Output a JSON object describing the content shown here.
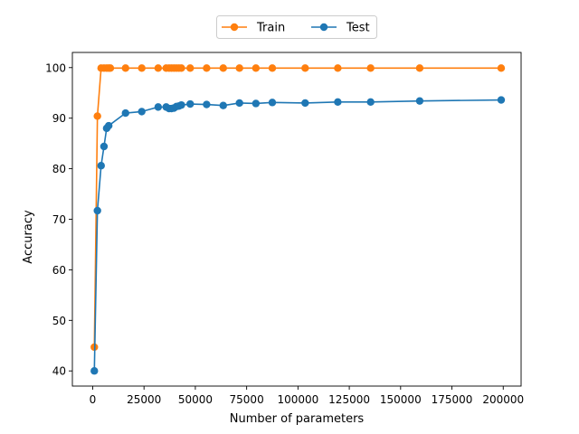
{
  "chart_data": {
    "type": "line",
    "xlabel": "Number of parameters",
    "ylabel": "Accuracy",
    "xlim": [
      -9900,
      208700
    ],
    "ylim": [
      37.0,
      103.0
    ],
    "xticks": [
      0,
      25000,
      50000,
      75000,
      100000,
      125000,
      150000,
      175000,
      200000
    ],
    "xtick_labels": [
      "0",
      "25000",
      "50000",
      "75000",
      "100000",
      "125000",
      "150000",
      "175000",
      "200000"
    ],
    "yticks": [
      40,
      50,
      60,
      70,
      80,
      90,
      100
    ],
    "ytick_labels": [
      "40",
      "50",
      "60",
      "70",
      "80",
      "90",
      "100"
    ],
    "grid": false,
    "legend_position": "top-center",
    "series": [
      {
        "name": "Train",
        "color": "#ff7f0e",
        "marker": "circle",
        "points": [
          [
            800,
            44.7
          ],
          [
            2300,
            90.4
          ],
          [
            4100,
            99.9
          ],
          [
            5500,
            99.9
          ],
          [
            6800,
            99.9
          ],
          [
            7800,
            99.9
          ],
          [
            8600,
            99.9
          ],
          [
            16000,
            99.9
          ],
          [
            23900,
            99.9
          ],
          [
            31900,
            99.9
          ],
          [
            35800,
            99.9
          ],
          [
            37200,
            99.9
          ],
          [
            38400,
            99.9
          ],
          [
            39600,
            99.9
          ],
          [
            40800,
            99.9
          ],
          [
            42000,
            99.9
          ],
          [
            43200,
            99.9
          ],
          [
            47500,
            99.9
          ],
          [
            55500,
            99.9
          ],
          [
            63600,
            99.9
          ],
          [
            71500,
            99.9
          ],
          [
            79500,
            99.9
          ],
          [
            87500,
            99.9
          ],
          [
            103500,
            99.9
          ],
          [
            119400,
            99.9
          ],
          [
            135400,
            99.9
          ],
          [
            159300,
            99.9
          ],
          [
            199000,
            99.9
          ]
        ]
      },
      {
        "name": "Test",
        "color": "#1f77b4",
        "marker": "circle",
        "points": [
          [
            800,
            40.0
          ],
          [
            2300,
            71.7
          ],
          [
            4100,
            80.6
          ],
          [
            5500,
            84.4
          ],
          [
            6800,
            88.0
          ],
          [
            7800,
            88.5
          ],
          [
            16000,
            91.0
          ],
          [
            23900,
            91.3
          ],
          [
            31900,
            92.2
          ],
          [
            35800,
            92.2
          ],
          [
            37200,
            91.9
          ],
          [
            38400,
            91.9
          ],
          [
            39600,
            92.0
          ],
          [
            40800,
            92.3
          ],
          [
            42000,
            92.4
          ],
          [
            43200,
            92.6
          ],
          [
            47500,
            92.8
          ],
          [
            55500,
            92.7
          ],
          [
            63600,
            92.5
          ],
          [
            71500,
            93.0
          ],
          [
            79500,
            92.9
          ],
          [
            87500,
            93.1
          ],
          [
            103500,
            93.0
          ],
          [
            119400,
            93.2
          ],
          [
            135400,
            93.2
          ],
          [
            159300,
            93.4
          ],
          [
            199000,
            93.6
          ]
        ]
      }
    ]
  }
}
